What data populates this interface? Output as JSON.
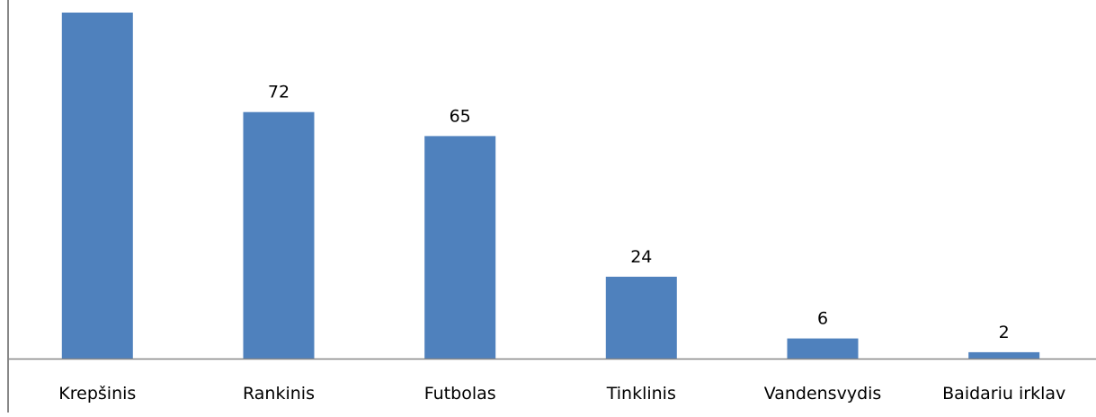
{
  "chart_data": {
    "type": "bar",
    "title": "",
    "xlabel": "",
    "ylabel": "",
    "categories": [
      "Krepšinis",
      "Rankinis",
      "Futbolas",
      "Tinklinis",
      "Vandensvydis",
      "Baidariu irklav"
    ],
    "values": [
      101,
      72,
      65,
      24,
      6,
      2
    ],
    "data_labels": [
      "",
      "72",
      "65",
      "24",
      "6",
      "2"
    ],
    "ylim": [
      0,
      101
    ],
    "grid": false,
    "legend": "none",
    "bar_color": "#4f81bd",
    "axis_color": "#878787"
  }
}
